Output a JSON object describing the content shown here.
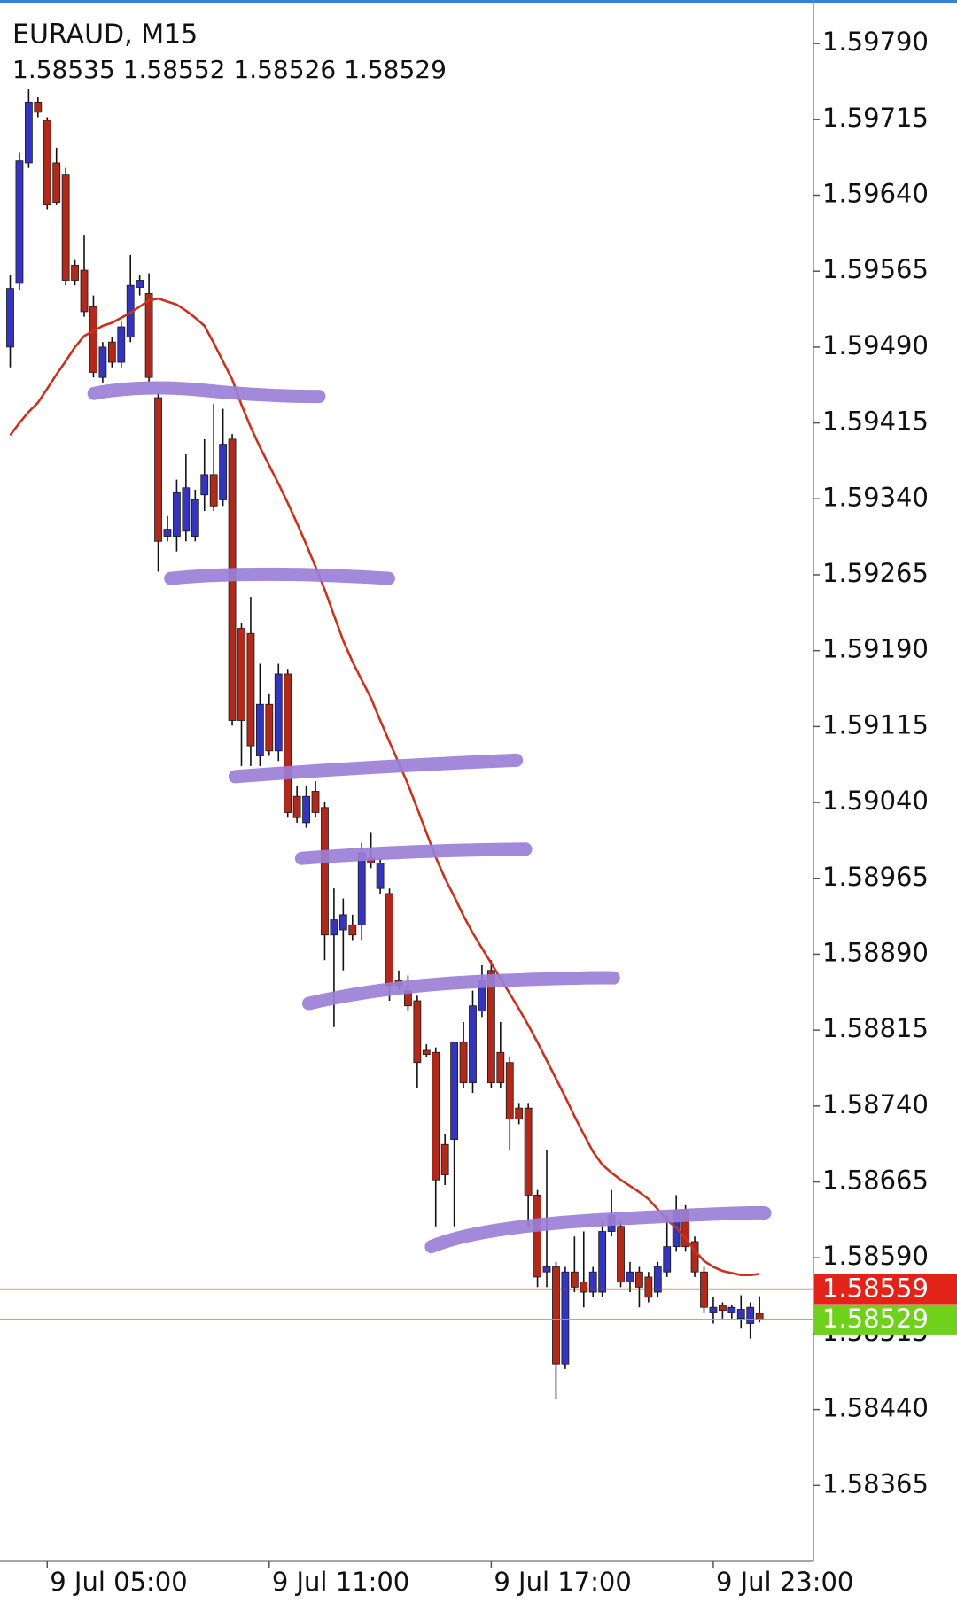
{
  "chart_data": {
    "type": "candlestick",
    "title": "EURAUD, M15",
    "categories": [
      null,
      null,
      null,
      null,
      "9 Jul 05:00",
      null,
      null,
      null,
      null,
      null,
      null,
      null,
      null,
      null,
      null,
      null,
      null,
      null,
      null,
      null,
      null,
      null,
      null,
      null,
      null,
      null,
      null,
      null,
      "9 Jul 11:00",
      null,
      null,
      null,
      null,
      null,
      null,
      null,
      null,
      null,
      null,
      null,
      null,
      null,
      null,
      null,
      null,
      null,
      null,
      null,
      null,
      null,
      null,
      null,
      "9 Jul 17:00",
      null,
      null,
      null,
      null,
      null,
      null,
      null,
      null,
      null,
      null,
      null,
      null,
      null,
      null,
      null,
      null,
      null,
      null,
      null,
      null,
      null,
      null,
      null,
      "9 Jul 23:00",
      null,
      null,
      null,
      null,
      null
    ],
    "open": [
      1.5949,
      1.59553,
      1.59672,
      1.59732,
      1.59714,
      1.59672,
      1.5966,
      1.59571,
      1.59566,
      1.5953,
      1.5946,
      1.59495,
      1.59475,
      1.595,
      1.59549,
      1.59543,
      1.5944,
      1.59303,
      1.59303,
      1.59308,
      1.59303,
      1.59344,
      1.59364,
      1.59339,
      1.59399,
      1.59212,
      1.59207,
      1.59086,
      1.59137,
      1.59091,
      1.59167,
      1.59046,
      1.5902,
      1.59051,
      1.59035,
      1.58909,
      1.58914,
      1.58919,
      1.58919,
      1.58985,
      1.58955,
      1.5895,
      1.58864,
      1.58854,
      1.58844,
      1.58795,
      1.58793,
      1.58702,
      1.58707,
      1.58803,
      1.58763,
      1.58834,
      1.58874,
      1.58793,
      1.58783,
      1.58738,
      1.58738,
      1.58652,
      1.58576,
      1.58581,
      1.58485,
      1.58576,
      1.58566,
      1.58556,
      1.58556,
      1.58616,
      1.58621,
      1.58566,
      1.58576,
      1.58571,
      1.58556,
      1.58576,
      1.58601,
      1.58637,
      1.58606,
      1.58576,
      1.58536,
      1.58543,
      1.58536,
      1.5853,
      1.58525,
      1.58535
    ],
    "high": [
      1.59561,
      1.59682,
      1.59745,
      1.59737,
      1.59717,
      1.59687,
      1.59667,
      1.59576,
      1.59601,
      1.59541,
      1.59495,
      1.595,
      1.59515,
      1.59581,
      1.59561,
      1.59563,
      1.59445,
      1.59323,
      1.59359,
      1.59384,
      1.59349,
      1.59399,
      1.59434,
      1.59429,
      1.59404,
      1.59217,
      1.59243,
      1.59177,
      1.59147,
      1.59177,
      1.59172,
      1.59056,
      1.59056,
      1.59061,
      1.59041,
      1.58955,
      1.58945,
      1.58929,
      1.59,
      1.5901,
      1.58985,
      1.58955,
      1.58874,
      1.58869,
      1.58849,
      1.58801,
      1.58798,
      1.58712,
      1.58803,
      1.58823,
      1.58854,
      1.58879,
      1.58884,
      1.58823,
      1.58788,
      1.58743,
      1.58743,
      1.58657,
      1.58697,
      1.58586,
      1.58581,
      1.58611,
      1.58616,
      1.58581,
      1.58626,
      1.58657,
      1.58626,
      1.58586,
      1.58581,
      1.58576,
      1.58586,
      1.58632,
      1.58652,
      1.58642,
      1.58611,
      1.58581,
      1.58551,
      1.58546,
      1.58543,
      1.58553,
      1.58546,
      1.58552
    ],
    "low": [
      1.5947,
      1.59546,
      1.59667,
      1.59717,
      1.59626,
      1.59631,
      1.59551,
      1.59551,
      1.5952,
      1.5946,
      1.59455,
      1.5947,
      1.5947,
      1.59495,
      1.59541,
      1.59455,
      1.59268,
      1.59298,
      1.59288,
      1.59298,
      1.59298,
      1.59328,
      1.59328,
      1.59333,
      1.59116,
      1.59076,
      1.59076,
      1.59076,
      1.59086,
      1.59081,
      1.59025,
      1.5902,
      1.59015,
      1.59025,
      1.58884,
      1.58818,
      1.58874,
      1.58904,
      1.58904,
      1.58975,
      1.5895,
      1.58844,
      1.58854,
      1.58834,
      1.58758,
      1.58788,
      1.58621,
      1.58662,
      1.58621,
      1.58758,
      1.58753,
      1.58828,
      1.58758,
      1.58758,
      1.58697,
      1.58722,
      1.58621,
      1.58561,
      1.58561,
      1.5845,
      1.5848,
      1.58556,
      1.58541,
      1.58551,
      1.58551,
      1.58611,
      1.58561,
      1.58556,
      1.58541,
      1.58546,
      1.58551,
      1.58571,
      1.58596,
      1.58596,
      1.58571,
      1.58536,
      1.58525,
      1.5853,
      1.5853,
      1.5852,
      1.5851,
      1.58526
    ],
    "close": [
      1.59548,
      1.59674,
      1.59732,
      1.59722,
      1.59631,
      1.59633,
      1.59556,
      1.59556,
      1.59525,
      1.59465,
      1.5949,
      1.59475,
      1.5951,
      1.59551,
      1.59556,
      1.5946,
      1.59298,
      1.5931,
      1.59346,
      1.59351,
      1.59339,
      1.59364,
      1.59333,
      1.59394,
      1.59121,
      1.59121,
      1.59096,
      1.59137,
      1.59091,
      1.59167,
      1.5903,
      1.59025,
      1.59046,
      1.5903,
      1.58909,
      1.58924,
      1.58929,
      1.58909,
      1.5899,
      1.5898,
      1.5898,
      1.58859,
      1.58859,
      1.58839,
      1.58783,
      1.58791,
      1.58667,
      1.58672,
      1.58803,
      1.58763,
      1.58839,
      1.58864,
      1.58763,
      1.58763,
      1.58727,
      1.58727,
      1.58652,
      1.58571,
      1.58581,
      1.58485,
      1.58576,
      1.58561,
      1.58556,
      1.58576,
      1.58616,
      1.58632,
      1.58566,
      1.58576,
      1.58561,
      1.58551,
      1.58581,
      1.58601,
      1.58637,
      1.58601,
      1.58576,
      1.58541,
      1.58541,
      1.58538,
      1.58541,
      1.58539,
      1.58541,
      1.58529
    ],
    "up_color": "#3434bf",
    "down_color": "#b0291a",
    "wick_color": "#111111",
    "ma": {
      "color": "#c9321f",
      "values": [
        1.59403,
        1.59415,
        1.59426,
        1.59435,
        1.59449,
        1.59463,
        1.59476,
        1.5949,
        1.59501,
        1.59506,
        1.59511,
        1.59514,
        1.59519,
        1.59524,
        1.5953,
        1.59536,
        1.59538,
        1.59535,
        1.59532,
        1.59526,
        1.59519,
        1.59511,
        1.59494,
        1.59476,
        1.59458,
        1.59433,
        1.59411,
        1.59391,
        1.59373,
        1.59355,
        1.59336,
        1.59316,
        1.59295,
        1.59273,
        1.5925,
        1.59225,
        1.592,
        1.59179,
        1.59161,
        1.59143,
        1.59121,
        1.591,
        1.59079,
        1.59058,
        1.59034,
        1.5901,
        1.58986,
        1.58965,
        1.58947,
        1.58928,
        1.58911,
        1.58896,
        1.58881,
        1.58866,
        1.58851,
        1.58836,
        1.5882,
        1.58803,
        1.58785,
        1.58767,
        1.58749,
        1.5873,
        1.58712,
        1.58695,
        1.58682,
        1.58674,
        1.58667,
        1.58661,
        1.58655,
        1.58648,
        1.58638,
        1.58627,
        1.5862,
        1.58609,
        1.58597,
        1.58587,
        1.58581,
        1.58577,
        1.58575,
        1.58573,
        1.58573,
        1.58574
      ]
    },
    "ask": 1.58559,
    "ask_color": "#e2231a",
    "bid": 1.58529,
    "bid_color": "#6fd11c",
    "ylim": [
      1.5829,
      1.59833
    ],
    "yticks": [
      {
        "value": 1.5979,
        "label": "1.59790"
      },
      1.59715,
      {
        "value": 1.5964,
        "label": "1.59640"
      },
      1.59565,
      {
        "value": 1.5949,
        "label": "1.59490"
      },
      1.59415,
      {
        "value": 1.5934,
        "label": "1.59340"
      },
      1.59265,
      {
        "value": 1.5919,
        "label": "1.59190"
      },
      1.59115,
      {
        "value": 1.5904,
        "label": "1.59040"
      },
      1.58965,
      {
        "value": 1.5889,
        "label": "1.58890"
      },
      1.58815,
      {
        "value": 1.5874,
        "label": "1.58740"
      },
      1.58665,
      {
        "value": 1.5859,
        "label": "1.58590"
      },
      1.58515,
      {
        "value": 1.5844,
        "label": "1.58440"
      },
      1.58365
    ],
    "grid": false
  }
}
